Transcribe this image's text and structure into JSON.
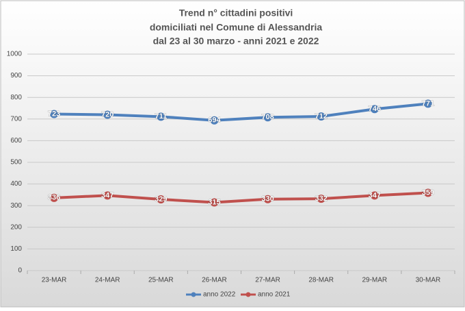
{
  "chart_data": {
    "type": "line",
    "title": [
      "Trend n° cittadini positivi",
      "domiciliati nel Comune di Alessandria",
      "dal 23 al 30 marzo - anni 2021 e 2022"
    ],
    "categories": [
      "23-MAR",
      "24-MAR",
      "25-MAR",
      "26-MAR",
      "27-MAR",
      "28-MAR",
      "29-MAR",
      "30-MAR"
    ],
    "series": [
      {
        "name": "anno 2022",
        "color": "#4f81bd",
        "values": [
          723,
          720,
          711,
          694,
          708,
          712,
          746,
          771
        ]
      },
      {
        "name": "anno 2021",
        "color": "#c0504d",
        "values": [
          336,
          347,
          329,
          315,
          330,
          332,
          347,
          359
        ]
      }
    ],
    "ylim": [
      0,
      1000
    ],
    "yticks": [
      0,
      100,
      200,
      300,
      400,
      500,
      600,
      700,
      800,
      900,
      1000
    ],
    "grid": true,
    "legend": "bottom"
  }
}
